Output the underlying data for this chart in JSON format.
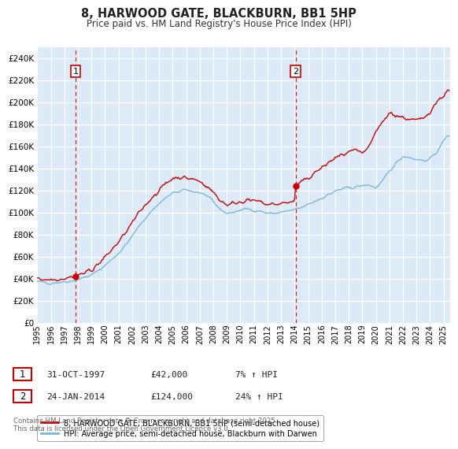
{
  "title": "8, HARWOOD GATE, BLACKBURN, BB1 5HP",
  "subtitle": "Price paid vs. HM Land Registry's House Price Index (HPI)",
  "ylim": [
    0,
    250000
  ],
  "background_color": "#dce9f7",
  "grid_color": "#ffffff",
  "line_color_red": "#cc0000",
  "line_color_blue": "#7ab8d9",
  "purchase1_year": 1997.83,
  "purchase1_price": 42000,
  "purchase2_year": 2014.07,
  "purchase2_price": 124000,
  "legend_label_red": "8, HARWOOD GATE, BLACKBURN, BB1 5HP (semi-detached house)",
  "legend_label_blue": "HPI: Average price, semi-detached house, Blackburn with Darwen",
  "table_row1": [
    "1",
    "31-OCT-1997",
    "£42,000",
    "7% ↑ HPI"
  ],
  "table_row2": [
    "2",
    "24-JAN-2014",
    "£124,000",
    "24% ↑ HPI"
  ],
  "footer": "Contains HM Land Registry data © Crown copyright and database right 2025.\nThis data is licensed under the Open Government Licence v3.0.",
  "hpi_waypoints_x": [
    1995.0,
    1995.5,
    1996.0,
    1996.5,
    1997.0,
    1997.5,
    1998.0,
    1998.5,
    1999.0,
    1999.5,
    2000.0,
    2000.5,
    2001.0,
    2001.5,
    2002.0,
    2002.5,
    2003.0,
    2003.5,
    2004.0,
    2004.5,
    2005.0,
    2005.5,
    2006.0,
    2006.5,
    2007.0,
    2007.5,
    2008.0,
    2008.5,
    2009.0,
    2009.5,
    2010.0,
    2010.5,
    2011.0,
    2011.5,
    2012.0,
    2012.5,
    2013.0,
    2013.5,
    2014.0,
    2014.5,
    2015.0,
    2015.5,
    2016.0,
    2016.5,
    2017.0,
    2017.5,
    2018.0,
    2018.5,
    2019.0,
    2019.5,
    2020.0,
    2020.5,
    2021.0,
    2021.5,
    2022.0,
    2022.5,
    2023.0,
    2023.5,
    2024.0,
    2024.5,
    2025.3
  ],
  "hpi_waypoints_y": [
    37000,
    36500,
    36000,
    36500,
    37000,
    38000,
    39000,
    41000,
    43000,
    47000,
    52000,
    57000,
    63000,
    70000,
    78000,
    87000,
    95000,
    102000,
    108000,
    113000,
    117000,
    119000,
    120000,
    119000,
    118000,
    115000,
    109000,
    103000,
    99000,
    100000,
    102000,
    103000,
    102000,
    101000,
    99000,
    99000,
    100000,
    101000,
    102000,
    104000,
    107000,
    110000,
    113000,
    116000,
    119000,
    121000,
    122000,
    123000,
    124000,
    125000,
    122000,
    128000,
    137000,
    145000,
    151000,
    150000,
    148000,
    147000,
    148000,
    155000,
    170000
  ],
  "price_waypoints_x": [
    1995.0,
    1995.5,
    1996.0,
    1996.5,
    1997.0,
    1997.5,
    1997.83,
    1998.0,
    1998.5,
    1999.0,
    1999.5,
    2000.0,
    2000.5,
    2001.0,
    2001.5,
    2002.0,
    2002.5,
    2003.0,
    2003.5,
    2004.0,
    2004.5,
    2005.0,
    2005.5,
    2006.0,
    2006.5,
    2007.0,
    2007.5,
    2008.0,
    2008.5,
    2009.0,
    2009.5,
    2010.0,
    2010.5,
    2011.0,
    2011.5,
    2012.0,
    2012.5,
    2013.0,
    2013.5,
    2014.0,
    2014.07,
    2014.5,
    2015.0,
    2015.5,
    2016.0,
    2016.5,
    2017.0,
    2017.5,
    2018.0,
    2018.5,
    2019.0,
    2019.5,
    2020.0,
    2020.5,
    2021.0,
    2021.5,
    2022.0,
    2022.5,
    2023.0,
    2023.5,
    2024.0,
    2024.5,
    2025.3
  ],
  "price_waypoints_y": [
    40000,
    39500,
    39000,
    39500,
    40500,
    41500,
    42000,
    43000,
    45000,
    48000,
    53000,
    59000,
    66000,
    73000,
    81000,
    90000,
    99000,
    107000,
    114000,
    120000,
    126000,
    131000,
    132000,
    131000,
    130000,
    128000,
    124000,
    118000,
    111000,
    107000,
    108000,
    110000,
    111000,
    110000,
    109000,
    107000,
    107000,
    108000,
    109000,
    110000,
    124000,
    127000,
    131000,
    136000,
    140000,
    145000,
    149000,
    152000,
    154000,
    156000,
    152000,
    160000,
    172000,
    182000,
    190000,
    188000,
    186000,
    184000,
    183000,
    185000,
    192000,
    200000,
    210000
  ]
}
